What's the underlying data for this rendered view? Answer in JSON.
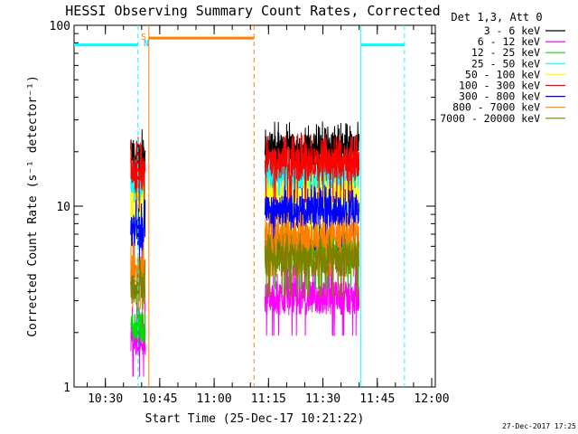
{
  "chart_data": {
    "type": "line",
    "title": "HESSI Observing Summary Count Rates, Corrected",
    "xlabel": "Start Time (25-Dec-17 10:21:22)",
    "ylabel": "Corrected Count Rate (s⁻¹ detector⁻¹)",
    "y_scale": "log",
    "ylim": [
      1,
      100
    ],
    "xlim": [
      "10:21:22",
      "12:01:00"
    ],
    "y_ticks": [
      "1",
      "10",
      "100"
    ],
    "x_ticks": [
      "10:30",
      "10:45",
      "11:00",
      "11:15",
      "11:30",
      "11:45",
      "12:00"
    ],
    "legend_header": "Det 1,3, Att 0",
    "grid": false,
    "legend_position": "right",
    "footer_timestamp": "27-Dec-2017 17:25",
    "flag_labels": [
      "S",
      "N"
    ],
    "series": [
      {
        "name": "3 - 6 keV",
        "color": "#000000",
        "segments": [
          {
            "start": "10:37",
            "end": "10:41",
            "level": 19.5,
            "spike": 26
          },
          {
            "start": "11:14",
            "end": "11:40",
            "level": 21,
            "spike": 27
          }
        ]
      },
      {
        "name": "6 - 12 keV",
        "color": "#ff00ff",
        "segments": [
          {
            "start": "10:37",
            "end": "10:41",
            "level": 1.9,
            "spike": 2.8
          },
          {
            "start": "11:14",
            "end": "11:40",
            "level": 3.2,
            "spike": 4.5
          }
        ]
      },
      {
        "name": "12 - 25 keV",
        "color": "#00dd00",
        "segments": [
          {
            "start": "10:37",
            "end": "10:41",
            "level": 2.2,
            "spike": 3.2
          },
          {
            "start": "11:14",
            "end": "11:40",
            "level": 5.8,
            "spike": 7.5
          }
        ]
      },
      {
        "name": "25 - 50 keV",
        "color": "#00ffff",
        "segments": [
          {
            "start": "10:37",
            "end": "10:41",
            "level": 13,
            "spike": 17
          },
          {
            "start": "11:14",
            "end": "11:40",
            "level": 14.5,
            "spike": 18
          }
        ]
      },
      {
        "name": "50 - 100 keV",
        "color": "#ffff00",
        "segments": [
          {
            "start": "10:37",
            "end": "10:41",
            "level": 10,
            "spike": 13
          },
          {
            "start": "11:14",
            "end": "11:40",
            "level": 11,
            "spike": 14
          }
        ]
      },
      {
        "name": "100 - 300 keV",
        "color": "#ff0000",
        "segments": [
          {
            "start": "10:37",
            "end": "10:41",
            "level": 15.5,
            "spike": 22
          },
          {
            "start": "11:14",
            "end": "11:40",
            "level": 17.5,
            "spike": 23
          }
        ]
      },
      {
        "name": "300 - 800 keV",
        "color": "#0000ff",
        "segments": [
          {
            "start": "10:37",
            "end": "10:41",
            "level": 7.5,
            "spike": 10
          },
          {
            "start": "11:14",
            "end": "11:40",
            "level": 9.5,
            "spike": 12
          }
        ]
      },
      {
        "name": "800 - 7000 keV",
        "color": "#ff8000",
        "segments": [
          {
            "start": "10:37",
            "end": "10:41",
            "level": 4.5,
            "spike": 5.8
          },
          {
            "start": "11:14",
            "end": "11:40",
            "level": 6.8,
            "spike": 8.5
          }
        ]
      },
      {
        "name": "7000 - 20000 keV",
        "color": "#808000",
        "segments": [
          {
            "start": "10:37",
            "end": "10:41",
            "level": 3.6,
            "spike": 4.6
          },
          {
            "start": "11:14",
            "end": "11:40",
            "level": 5.2,
            "spike": 6.5
          }
        ]
      }
    ],
    "night_intervals": [
      {
        "bar_start": "10:21:22",
        "bar_end": "10:39:00",
        "dash": "10:39:00",
        "color": "#00ffff",
        "level": 78
      },
      {
        "bar_start": "11:40:30",
        "bar_end": "11:52:30",
        "dash": "11:52:30",
        "color": "#00ffff",
        "level": 78
      }
    ],
    "saa_intervals": [
      {
        "bar_start": "10:42:00",
        "bar_end": "11:11:00",
        "dash": "11:11:00",
        "color": "#ff8000",
        "level": 85
      }
    ],
    "vertical_markers": [
      {
        "time": "10:42:00",
        "color": "#ff8000",
        "style": "solid"
      },
      {
        "time": "11:40:30",
        "color": "#00ffff",
        "style": "solid"
      }
    ]
  }
}
